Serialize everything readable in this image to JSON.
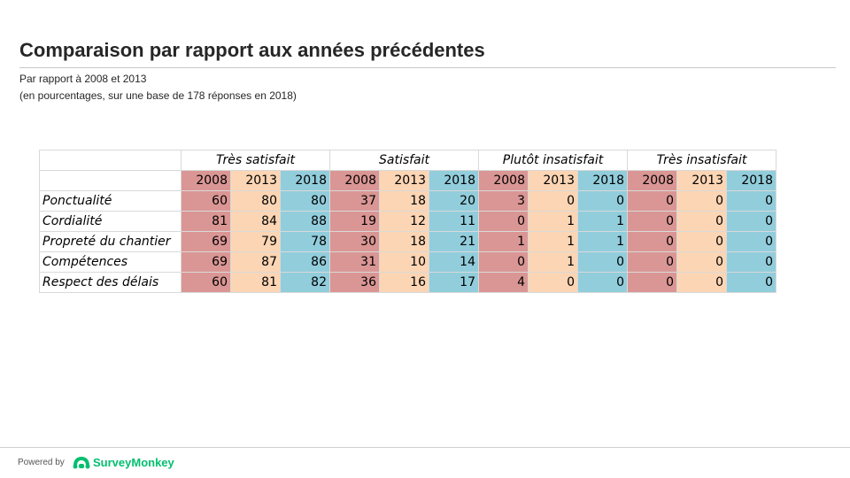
{
  "title": "Comparaison par rapport aux années précédentes",
  "subtitle1": "Par rapport  à 2008 et 2013",
  "subtitle2": "(en pourcentages, sur une base de 178 réponses en 2018)",
  "groups": [
    "Très satisfait",
    "Satisfait",
    "Plutôt insatisfait",
    "Très insatisfait"
  ],
  "years": [
    "2008",
    "2013",
    "2018"
  ],
  "year_colors": {
    "2008": "#da9694",
    "2013": "#fcd5b4",
    "2018": "#92cddc"
  },
  "rows": [
    {
      "label": "Ponctualité",
      "values": [
        60,
        80,
        80,
        37,
        18,
        20,
        3,
        0,
        0,
        0,
        0,
        0
      ]
    },
    {
      "label": "Cordialité",
      "values": [
        81,
        84,
        88,
        19,
        12,
        11,
        0,
        1,
        1,
        0,
        0,
        0
      ]
    },
    {
      "label": "Propreté du chantier",
      "values": [
        69,
        79,
        78,
        30,
        18,
        21,
        1,
        1,
        1,
        0,
        0,
        0
      ]
    },
    {
      "label": "Compétences",
      "values": [
        69,
        87,
        86,
        31,
        10,
        14,
        0,
        1,
        0,
        0,
        0,
        0
      ]
    },
    {
      "label": "Respect des délais",
      "values": [
        60,
        81,
        82,
        36,
        16,
        17,
        4,
        0,
        0,
        0,
        0,
        0
      ]
    }
  ],
  "footer": {
    "powered_by": "Powered by",
    "brand": "SurveyMonkey",
    "brand_icon": "surveymonkey-logo-icon",
    "brand_color": "#00bf6f"
  }
}
